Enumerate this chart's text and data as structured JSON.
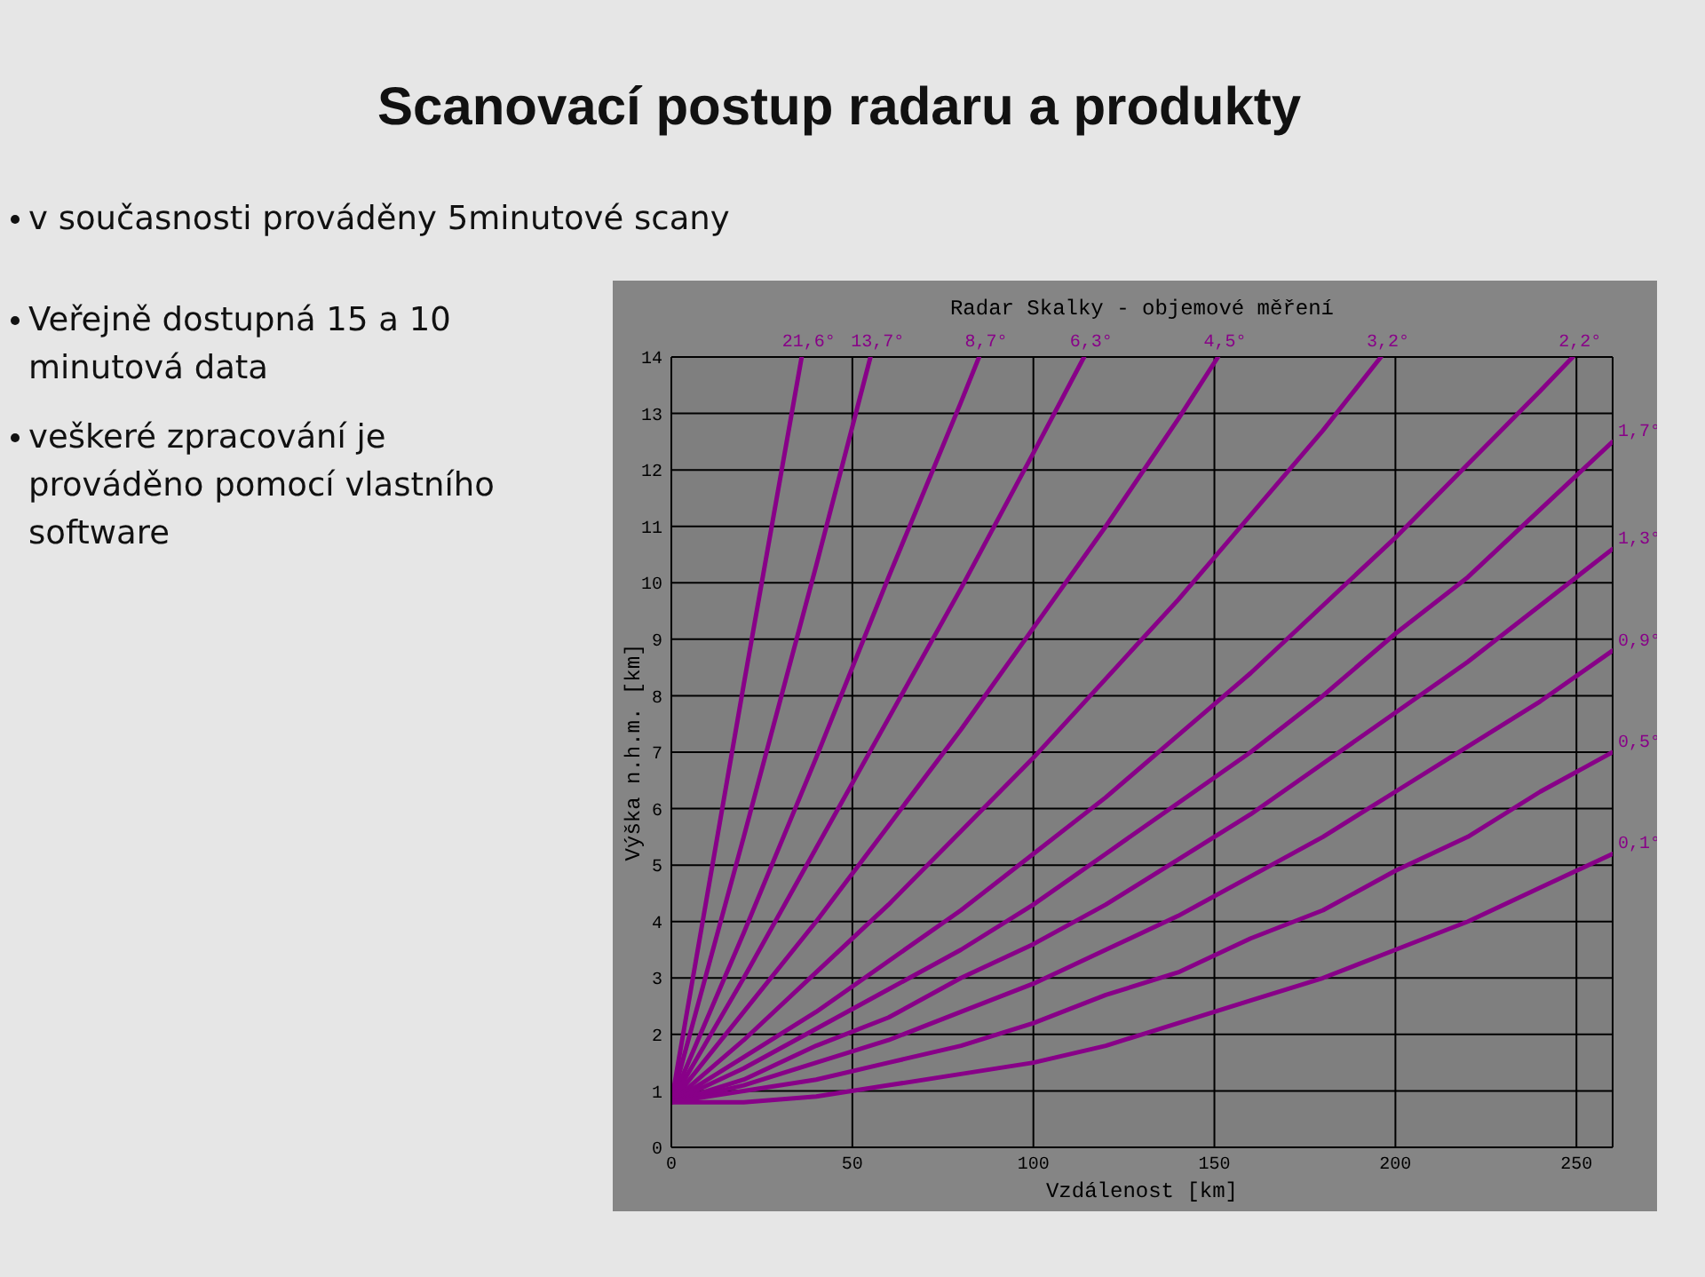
{
  "chart_data": {
    "type": "line",
    "title": "Scanovací postup radaru a produkty",
    "subtitle": "Radar Skalky - objemové měření",
    "xlabel": "Vzdálenost [km]",
    "ylabel": "Výška n.h.m. [km]",
    "annotations": [
      "v současnosti prováděny 5minutové scany",
      "Veřejně dostupná 15 a 10 minutová data",
      "veškeré zpracování je prováděno pomocí vlastního software"
    ],
    "xlim": [
      0,
      260
    ],
    "ylim": [
      0,
      14
    ],
    "xticks": [
      0,
      50,
      100,
      150,
      200,
      250
    ],
    "yticks": [
      0,
      1,
      2,
      3,
      4,
      5,
      6,
      7,
      8,
      9,
      10,
      11,
      12,
      13,
      14
    ],
    "grid": true,
    "marker": "none",
    "line_style": "solid",
    "series": [
      {
        "name": "21,6°",
        "color": "#880088",
        "x": [
          0,
          20,
          36
        ],
        "values": [
          0.8,
          8.2,
          14
        ]
      },
      {
        "name": "13,7°",
        "color": "#880088",
        "x": [
          0,
          20,
          40,
          55
        ],
        "values": [
          0.8,
          5.5,
          10.3,
          14
        ]
      },
      {
        "name": "8,7°",
        "color": "#880088",
        "x": [
          0,
          20,
          40,
          60,
          80,
          85
        ],
        "values": [
          0.8,
          3.8,
          6.9,
          10.1,
          13.2,
          14
        ]
      },
      {
        "name": "6,3°",
        "color": "#880088",
        "x": [
          0,
          20,
          40,
          60,
          80,
          100,
          114
        ],
        "values": [
          0.8,
          3.0,
          5.3,
          7.6,
          9.9,
          12.3,
          14
        ]
      },
      {
        "name": "4,5°",
        "color": "#880088",
        "x": [
          0,
          20,
          40,
          60,
          80,
          100,
          120,
          140,
          151
        ],
        "values": [
          0.8,
          2.4,
          4.0,
          5.7,
          7.4,
          9.2,
          11.0,
          12.9,
          14
        ]
      },
      {
        "name": "3,2°",
        "color": "#880088",
        "x": [
          0,
          20,
          40,
          60,
          80,
          100,
          120,
          140,
          160,
          180,
          196
        ],
        "values": [
          0.8,
          1.9,
          3.1,
          4.3,
          5.6,
          6.9,
          8.3,
          9.7,
          11.2,
          12.7,
          14
        ]
      },
      {
        "name": "2,2°",
        "color": "#880088",
        "x": [
          0,
          20,
          40,
          60,
          80,
          100,
          120,
          140,
          160,
          180,
          200,
          220,
          240,
          249
        ],
        "values": [
          0.8,
          1.6,
          2.4,
          3.3,
          4.2,
          5.2,
          6.2,
          7.3,
          8.4,
          9.6,
          10.8,
          12.1,
          13.4,
          14
        ]
      },
      {
        "name": "1,7°",
        "color": "#880088",
        "x": [
          0,
          20,
          40,
          60,
          80,
          100,
          120,
          140,
          160,
          180,
          200,
          220,
          240,
          260
        ],
        "values": [
          0.8,
          1.4,
          2.1,
          2.8,
          3.5,
          4.3,
          5.2,
          6.1,
          7.0,
          8.0,
          9.1,
          10.1,
          11.3,
          12.5
        ]
      },
      {
        "name": "1,3°",
        "color": "#880088",
        "x": [
          0,
          20,
          40,
          60,
          80,
          100,
          120,
          140,
          160,
          180,
          200,
          220,
          240,
          260
        ],
        "values": [
          0.8,
          1.2,
          1.8,
          2.3,
          3.0,
          3.6,
          4.3,
          5.1,
          5.9,
          6.8,
          7.7,
          8.6,
          9.6,
          10.6
        ]
      },
      {
        "name": "0,9°",
        "color": "#880088",
        "x": [
          0,
          20,
          40,
          60,
          80,
          100,
          120,
          140,
          160,
          180,
          200,
          220,
          240,
          260
        ],
        "values": [
          0.8,
          1.1,
          1.5,
          1.9,
          2.4,
          2.9,
          3.5,
          4.1,
          4.8,
          5.5,
          6.3,
          7.1,
          7.9,
          8.8
        ]
      },
      {
        "name": "0,5°",
        "color": "#880088",
        "x": [
          0,
          20,
          40,
          60,
          80,
          100,
          120,
          140,
          160,
          180,
          200,
          220,
          240,
          260
        ],
        "values": [
          0.8,
          1.0,
          1.2,
          1.5,
          1.8,
          2.2,
          2.7,
          3.1,
          3.7,
          4.2,
          4.9,
          5.5,
          6.3,
          7.0
        ]
      },
      {
        "name": "0,1°",
        "color": "#880088",
        "x": [
          0,
          20,
          40,
          60,
          80,
          100,
          120,
          140,
          160,
          180,
          200,
          220,
          240,
          260
        ],
        "values": [
          0.8,
          0.8,
          0.9,
          1.1,
          1.3,
          1.5,
          1.8,
          2.2,
          2.6,
          3.0,
          3.5,
          4.0,
          4.6,
          5.2
        ]
      }
    ]
  }
}
